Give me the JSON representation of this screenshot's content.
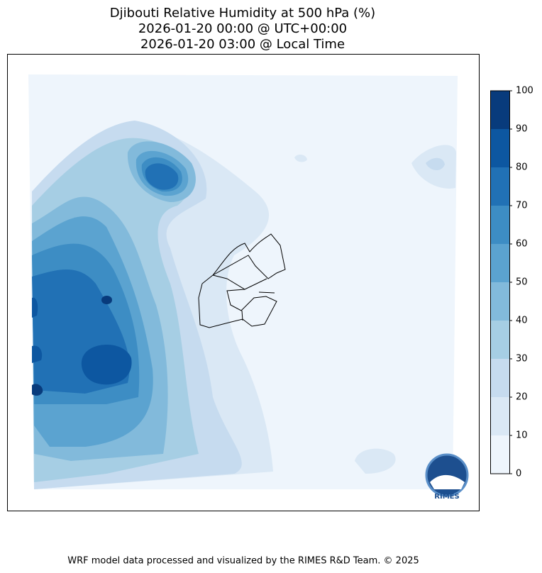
{
  "title": [
    "Djibouti Relative Humidity at 500 hPa (%)",
    "2026-01-20 00:00 @ UTC+00:00",
    "2026-01-20 03:00 @ Local Time"
  ],
  "colorbar": {
    "levels": [
      0,
      10,
      20,
      30,
      40,
      50,
      60,
      70,
      80,
      90,
      100
    ],
    "colors": [
      "#eef5fc",
      "#dae8f5",
      "#c6dbef",
      "#a6cee4",
      "#82badb",
      "#5ba3d0",
      "#3d8dc4",
      "#2171b5",
      "#0d57a1",
      "#083b7c"
    ]
  },
  "logo": "RIMES",
  "footer": "WRF model data processed and visualized by the RIMES R&D Team. © 2025"
}
